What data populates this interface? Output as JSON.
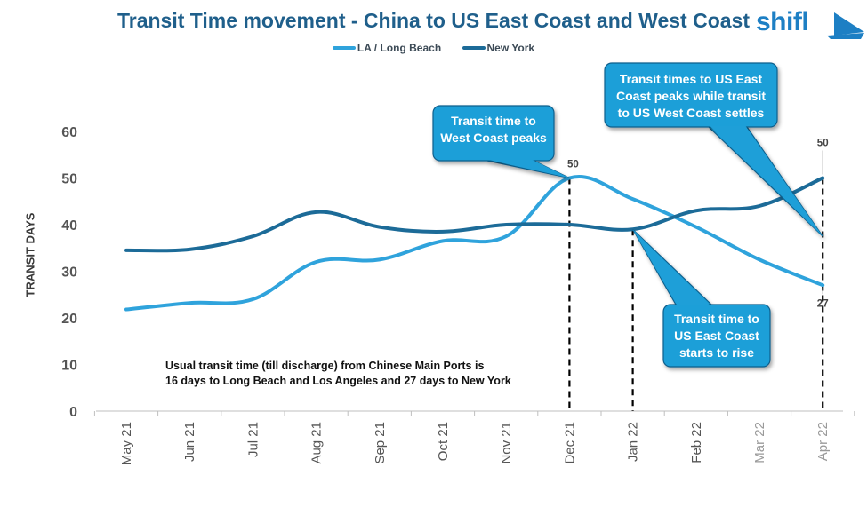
{
  "chart_data": {
    "type": "line",
    "title": "Transit Time movement - China to US East Coast and West Coast",
    "ylabel": "TRANSIT DAYS",
    "xlabel": "",
    "categories": [
      "May 21",
      "Jun 21",
      "Jul 21",
      "Aug 21",
      "Sep 21",
      "Oct 21",
      "Nov 21",
      "Dec 21",
      "Jan 22",
      "Feb 22",
      "Mar 22",
      "Apr 22"
    ],
    "yticks": [
      0,
      10,
      20,
      30,
      40,
      50,
      60
    ],
    "ylim": [
      0,
      60
    ],
    "grid": false,
    "legend_position": "top-center",
    "series": [
      {
        "name": "LA / Long Beach",
        "color": "#2fa3dc",
        "values": [
          21.8,
          23.2,
          24,
          32,
          32.5,
          36.5,
          37.5,
          50,
          45.5,
          39.5,
          32.5,
          27
        ]
      },
      {
        "name": "New York",
        "color": "#1c6b98",
        "values": [
          34.5,
          34.7,
          37.5,
          42.7,
          39.5,
          38.5,
          40,
          40,
          39,
          43,
          44,
          50
        ]
      }
    ],
    "data_labels": [
      {
        "category": "Dec 21",
        "series": "LA / Long Beach",
        "text": "50"
      },
      {
        "category": "Apr 22",
        "series": "New York",
        "text": "50"
      },
      {
        "category": "Apr 22",
        "series": "LA / Long Beach",
        "text": "27"
      }
    ],
    "reference_lines": [
      "Dec 21",
      "Jan 22",
      "Apr 22"
    ],
    "callouts": [
      {
        "id": "west-peaks",
        "text": "Transit time to\nWest Coast peaks",
        "target_category": "Dec 21",
        "target_value": 50
      },
      {
        "id": "east-peaks",
        "text": "Transit times to US East\nCoast peaks while transit\nto US West Coast settles",
        "target_category": "Apr 22",
        "target_value": 37.5
      },
      {
        "id": "east-rise",
        "text": "Transit time to\nUS East Coast\nstarts to rise",
        "target_category": "Jan 22",
        "target_value": 39
      }
    ],
    "annotation": "Usual transit time (till discharge) from Chinese Main Ports is\n16 days to Long Beach and Los Angeles and 27 days to New York"
  },
  "colors": {
    "title": "#1f5f8b",
    "callout_fill": "#1e9fd8",
    "callout_border": "#0f5f8c",
    "axis": "#bfbfbf",
    "tick_text": "#555555"
  },
  "logo": {
    "text": "shifl"
  }
}
